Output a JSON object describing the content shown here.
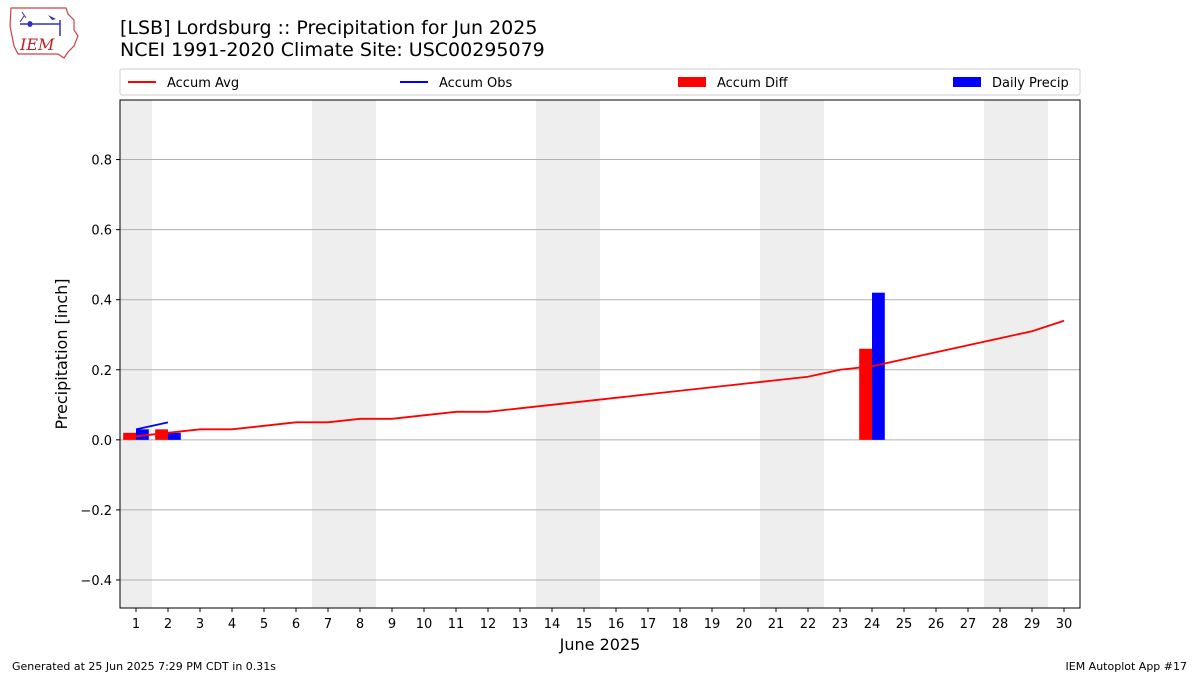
{
  "header": {
    "title_line1": "[LSB] Lordsburg :: Precipitation for Jun 2025",
    "title_line2": "NCEI 1991-2020 Climate Site: USC00295079"
  },
  "logo": {
    "text": "IEM"
  },
  "footer": {
    "left": "Generated at 25 Jun 2025 7:29 PM CDT in 0.31s",
    "right": "IEM Autoplot App #17"
  },
  "colors": {
    "accum_avg": "#ff0000",
    "accum_obs": "#0000ff",
    "accum_diff": "#ff0000",
    "daily_precip": "#0000ff",
    "weekend_shade": "#eeeeee",
    "grid": "#b0b0b0"
  },
  "chart_data": {
    "type": "bar",
    "xlabel": "June 2025",
    "ylabel": "Precipitation [inch]",
    "x": [
      1,
      2,
      3,
      4,
      5,
      6,
      7,
      8,
      9,
      10,
      11,
      12,
      13,
      14,
      15,
      16,
      17,
      18,
      19,
      20,
      21,
      22,
      23,
      24,
      25,
      26,
      27,
      28,
      29,
      30
    ],
    "xlim": [
      0.5,
      30.5
    ],
    "ylim": [
      -0.48,
      0.97
    ],
    "yticks": [
      -0.4,
      -0.2,
      0.0,
      0.2,
      0.4,
      0.6,
      0.8
    ],
    "ytick_labels": [
      "−0.4",
      "−0.2",
      "0.0",
      "0.2",
      "0.4",
      "0.6",
      "0.8"
    ],
    "grid": "horizontal",
    "legend_position": "top",
    "shaded_weekend_days": [
      1,
      7,
      8,
      14,
      15,
      21,
      22,
      28,
      29
    ],
    "series": [
      {
        "name": "Accum Avg",
        "kind": "line",
        "x": [
          1,
          2,
          3,
          4,
          5,
          6,
          7,
          8,
          9,
          10,
          11,
          12,
          13,
          14,
          15,
          16,
          17,
          18,
          19,
          20,
          21,
          22,
          23,
          24,
          25,
          26,
          27,
          28,
          29,
          30
        ],
        "values": [
          0.01,
          0.02,
          0.03,
          0.03,
          0.04,
          0.05,
          0.05,
          0.06,
          0.06,
          0.07,
          0.08,
          0.08,
          0.09,
          0.1,
          0.11,
          0.12,
          0.13,
          0.14,
          0.15,
          0.16,
          0.17,
          0.18,
          0.2,
          0.21,
          0.23,
          0.25,
          0.27,
          0.29,
          0.31,
          0.34
        ]
      },
      {
        "name": "Accum Obs",
        "kind": "line",
        "x": [
          1,
          2
        ],
        "values": [
          0.03,
          0.05
        ]
      },
      {
        "name": "Accum Diff",
        "kind": "bar",
        "x": [
          1,
          2,
          24
        ],
        "values": [
          0.02,
          0.03,
          0.26
        ]
      },
      {
        "name": "Daily Precip",
        "kind": "bar",
        "x": [
          1,
          2,
          24
        ],
        "values": [
          0.03,
          0.02,
          0.42
        ]
      }
    ]
  }
}
